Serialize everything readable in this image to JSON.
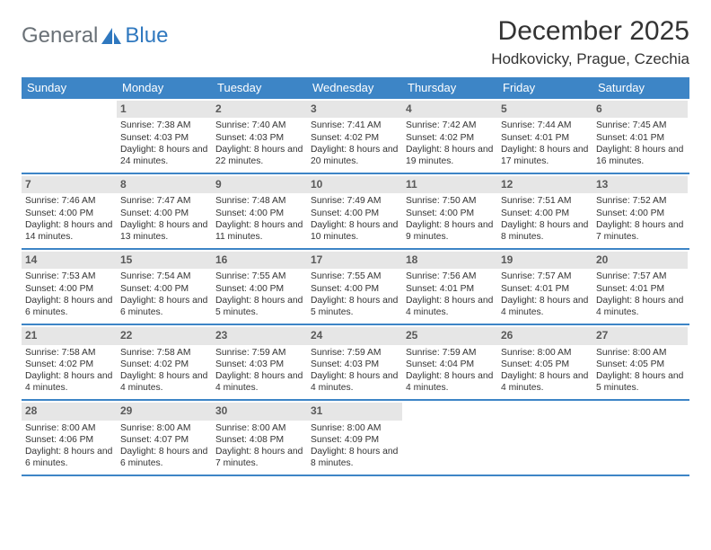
{
  "logo": {
    "text_left": "General",
    "text_right": "Blue",
    "accent_color": "#2f78bf",
    "text_color": "#6a7177"
  },
  "title": "December 2025",
  "location": "Hodkovicky, Prague, Czechia",
  "header_bg": "#3d85c6",
  "daynum_bg": "#e6e6e6",
  "weekdays": [
    "Sunday",
    "Monday",
    "Tuesday",
    "Wednesday",
    "Thursday",
    "Friday",
    "Saturday"
  ],
  "weeks": [
    [
      null,
      {
        "n": "1",
        "sr": "Sunrise: 7:38 AM",
        "ss": "Sunset: 4:03 PM",
        "dl": "Daylight: 8 hours and 24 minutes."
      },
      {
        "n": "2",
        "sr": "Sunrise: 7:40 AM",
        "ss": "Sunset: 4:03 PM",
        "dl": "Daylight: 8 hours and 22 minutes."
      },
      {
        "n": "3",
        "sr": "Sunrise: 7:41 AM",
        "ss": "Sunset: 4:02 PM",
        "dl": "Daylight: 8 hours and 20 minutes."
      },
      {
        "n": "4",
        "sr": "Sunrise: 7:42 AM",
        "ss": "Sunset: 4:02 PM",
        "dl": "Daylight: 8 hours and 19 minutes."
      },
      {
        "n": "5",
        "sr": "Sunrise: 7:44 AM",
        "ss": "Sunset: 4:01 PM",
        "dl": "Daylight: 8 hours and 17 minutes."
      },
      {
        "n": "6",
        "sr": "Sunrise: 7:45 AM",
        "ss": "Sunset: 4:01 PM",
        "dl": "Daylight: 8 hours and 16 minutes."
      }
    ],
    [
      {
        "n": "7",
        "sr": "Sunrise: 7:46 AM",
        "ss": "Sunset: 4:00 PM",
        "dl": "Daylight: 8 hours and 14 minutes."
      },
      {
        "n": "8",
        "sr": "Sunrise: 7:47 AM",
        "ss": "Sunset: 4:00 PM",
        "dl": "Daylight: 8 hours and 13 minutes."
      },
      {
        "n": "9",
        "sr": "Sunrise: 7:48 AM",
        "ss": "Sunset: 4:00 PM",
        "dl": "Daylight: 8 hours and 11 minutes."
      },
      {
        "n": "10",
        "sr": "Sunrise: 7:49 AM",
        "ss": "Sunset: 4:00 PM",
        "dl": "Daylight: 8 hours and 10 minutes."
      },
      {
        "n": "11",
        "sr": "Sunrise: 7:50 AM",
        "ss": "Sunset: 4:00 PM",
        "dl": "Daylight: 8 hours and 9 minutes."
      },
      {
        "n": "12",
        "sr": "Sunrise: 7:51 AM",
        "ss": "Sunset: 4:00 PM",
        "dl": "Daylight: 8 hours and 8 minutes."
      },
      {
        "n": "13",
        "sr": "Sunrise: 7:52 AM",
        "ss": "Sunset: 4:00 PM",
        "dl": "Daylight: 8 hours and 7 minutes."
      }
    ],
    [
      {
        "n": "14",
        "sr": "Sunrise: 7:53 AM",
        "ss": "Sunset: 4:00 PM",
        "dl": "Daylight: 8 hours and 6 minutes."
      },
      {
        "n": "15",
        "sr": "Sunrise: 7:54 AM",
        "ss": "Sunset: 4:00 PM",
        "dl": "Daylight: 8 hours and 6 minutes."
      },
      {
        "n": "16",
        "sr": "Sunrise: 7:55 AM",
        "ss": "Sunset: 4:00 PM",
        "dl": "Daylight: 8 hours and 5 minutes."
      },
      {
        "n": "17",
        "sr": "Sunrise: 7:55 AM",
        "ss": "Sunset: 4:00 PM",
        "dl": "Daylight: 8 hours and 5 minutes."
      },
      {
        "n": "18",
        "sr": "Sunrise: 7:56 AM",
        "ss": "Sunset: 4:01 PM",
        "dl": "Daylight: 8 hours and 4 minutes."
      },
      {
        "n": "19",
        "sr": "Sunrise: 7:57 AM",
        "ss": "Sunset: 4:01 PM",
        "dl": "Daylight: 8 hours and 4 minutes."
      },
      {
        "n": "20",
        "sr": "Sunrise: 7:57 AM",
        "ss": "Sunset: 4:01 PM",
        "dl": "Daylight: 8 hours and 4 minutes."
      }
    ],
    [
      {
        "n": "21",
        "sr": "Sunrise: 7:58 AM",
        "ss": "Sunset: 4:02 PM",
        "dl": "Daylight: 8 hours and 4 minutes."
      },
      {
        "n": "22",
        "sr": "Sunrise: 7:58 AM",
        "ss": "Sunset: 4:02 PM",
        "dl": "Daylight: 8 hours and 4 minutes."
      },
      {
        "n": "23",
        "sr": "Sunrise: 7:59 AM",
        "ss": "Sunset: 4:03 PM",
        "dl": "Daylight: 8 hours and 4 minutes."
      },
      {
        "n": "24",
        "sr": "Sunrise: 7:59 AM",
        "ss": "Sunset: 4:03 PM",
        "dl": "Daylight: 8 hours and 4 minutes."
      },
      {
        "n": "25",
        "sr": "Sunrise: 7:59 AM",
        "ss": "Sunset: 4:04 PM",
        "dl": "Daylight: 8 hours and 4 minutes."
      },
      {
        "n": "26",
        "sr": "Sunrise: 8:00 AM",
        "ss": "Sunset: 4:05 PM",
        "dl": "Daylight: 8 hours and 4 minutes."
      },
      {
        "n": "27",
        "sr": "Sunrise: 8:00 AM",
        "ss": "Sunset: 4:05 PM",
        "dl": "Daylight: 8 hours and 5 minutes."
      }
    ],
    [
      {
        "n": "28",
        "sr": "Sunrise: 8:00 AM",
        "ss": "Sunset: 4:06 PM",
        "dl": "Daylight: 8 hours and 6 minutes."
      },
      {
        "n": "29",
        "sr": "Sunrise: 8:00 AM",
        "ss": "Sunset: 4:07 PM",
        "dl": "Daylight: 8 hours and 6 minutes."
      },
      {
        "n": "30",
        "sr": "Sunrise: 8:00 AM",
        "ss": "Sunset: 4:08 PM",
        "dl": "Daylight: 8 hours and 7 minutes."
      },
      {
        "n": "31",
        "sr": "Sunrise: 8:00 AM",
        "ss": "Sunset: 4:09 PM",
        "dl": "Daylight: 8 hours and 8 minutes."
      },
      null,
      null,
      null
    ]
  ]
}
